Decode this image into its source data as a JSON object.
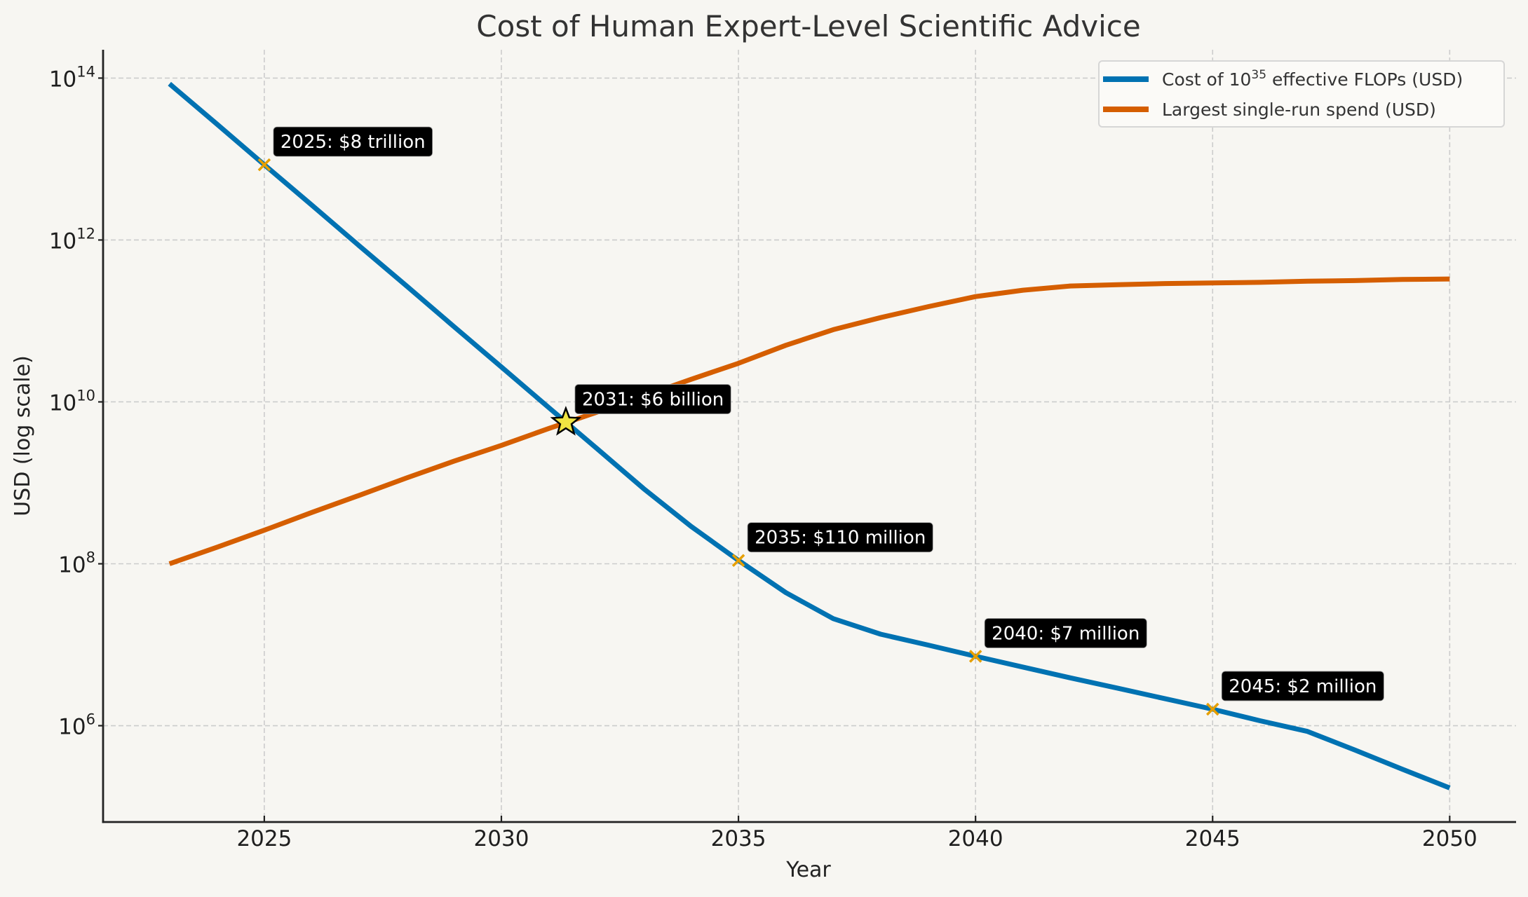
{
  "chart_data": {
    "type": "line",
    "title": "Cost of Human Expert-Level Scientific Advice",
    "xlabel": "Year",
    "ylabel": "USD (log scale)",
    "yscale": "log",
    "xlim": [
      2021.6,
      2051.4
    ],
    "ylim_log10": [
      4.81,
      14.35
    ],
    "grid": true,
    "legend_position": "top-right",
    "x_ticks": [
      2025,
      2030,
      2035,
      2040,
      2045,
      2050
    ],
    "x_tick_labels": [
      "2025",
      "2030",
      "2035",
      "2040",
      "2045",
      "2050"
    ],
    "y_ticks_log10": [
      6,
      8,
      10,
      12,
      14
    ],
    "y_tick_labels": [
      {
        "base": "10",
        "exp": "6"
      },
      {
        "base": "10",
        "exp": "8"
      },
      {
        "base": "10",
        "exp": "10"
      },
      {
        "base": "10",
        "exp": "12"
      },
      {
        "base": "10",
        "exp": "14"
      }
    ],
    "series": [
      {
        "name": "Cost of 10^35 effective FLOPs (USD)",
        "legend_label_main": "Cost of 10",
        "legend_label_sup": "35",
        "legend_label_rest": " effective FLOPs (USD)",
        "color": "#0072b2",
        "x": [
          2023,
          2024,
          2025,
          2026,
          2027,
          2028,
          2029,
          2030,
          2031,
          2032,
          2033,
          2034,
          2035,
          2036,
          2037,
          2038,
          2039,
          2040,
          2041,
          2042,
          2043,
          2044,
          2045,
          2046,
          2047,
          2048,
          2049,
          2050
        ],
        "values": [
          85000000000000.0,
          27000000000000.0,
          8500000000000.0,
          2700000000000.0,
          850000000000.0,
          270000000000.0,
          85000000000.0,
          27000000000.0,
          8500000000.0,
          2700000000.0,
          850000000.0,
          290000000.0,
          110000000.0,
          44000000.0,
          21000000.0,
          13500000.0,
          9900000.0,
          7200000.0,
          5300000.0,
          3900000.0,
          2900000.0,
          2150000.0,
          1600000.0,
          1150000.0,
          850000.0,
          500000.0,
          290000.0,
          170000.0
        ]
      },
      {
        "name": "Largest single-run spend (USD)",
        "legend_label_main": "Largest single-run spend (USD)",
        "color": "#d55e00",
        "x": [
          2023,
          2024,
          2025,
          2026,
          2027,
          2028,
          2029,
          2030,
          2031,
          2032,
          2033,
          2034,
          2035,
          2036,
          2037,
          2038,
          2039,
          2040,
          2041,
          2042,
          2043,
          2044,
          2045,
          2046,
          2047,
          2048,
          2049,
          2050
        ],
        "values": [
          100000000.0,
          160000000.0,
          260000000.0,
          430000000.0,
          700000000.0,
          1150000000.0,
          1850000000.0,
          2900000000.0,
          4700000000.0,
          7400000000.0,
          11800000000.0,
          19000000000.0,
          30000000000.0,
          50000000000.0,
          78000000000.0,
          110000000000.0,
          150000000000.0,
          200000000000.0,
          240000000000.0,
          270000000000.0,
          280000000000.0,
          290000000000.0,
          295000000000.0,
          300000000000.0,
          310000000000.0,
          315000000000.0,
          325000000000.0,
          330000000000.0
        ]
      }
    ],
    "crossover": {
      "year": 2031.36,
      "value": 5600000000.0,
      "marker": "star",
      "color": "#f0e442"
    },
    "annotations": [
      {
        "year": 2025,
        "value": 8500000000000.0,
        "text": "2025: $8 trillion"
      },
      {
        "year": 2031.36,
        "value": 5600000000.0,
        "text": "2031: $6 billion"
      },
      {
        "year": 2035,
        "value": 110000000.0,
        "text": "2035: $110 million"
      },
      {
        "year": 2040,
        "value": 7200000.0,
        "text": "2040: $7 million"
      },
      {
        "year": 2045,
        "value": 1600000.0,
        "text": "2045: $2 million"
      }
    ],
    "marker_color": "#e69f00"
  }
}
